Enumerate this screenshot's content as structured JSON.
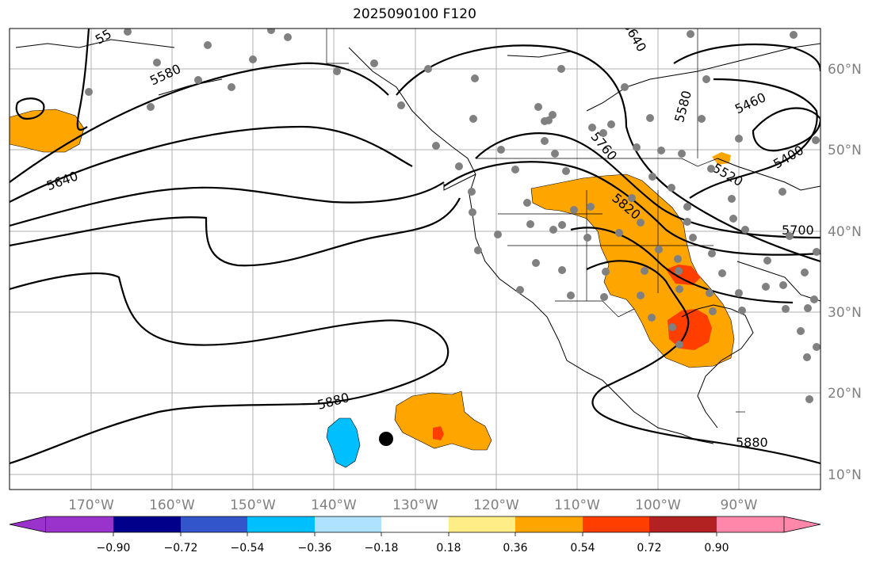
{
  "title": "2025090100 F120",
  "colors": {
    "grid": "#b0b0b0",
    "tick": "#808080",
    "station": "#808080",
    "bins": [
      "#9933cc",
      "#00008b",
      "#3355cc",
      "#00bfff",
      "#aee2ff",
      "#ffffff",
      "#ffee88",
      "#ffa500",
      "#ff3e00",
      "#b22222",
      "#ff88aa"
    ]
  },
  "longitude_labels": [
    "170°W",
    "160°W",
    "150°W",
    "140°W",
    "130°W",
    "120°W",
    "110°W",
    "100°W",
    "90°W"
  ],
  "latitude_labels": [
    "60°N",
    "50°N",
    "40°N",
    "30°N",
    "20°N",
    "10°N"
  ],
  "colorbar_ticks": [
    "−0.90",
    "−0.72",
    "−0.54",
    "−0.36",
    "−0.18",
    "0.18",
    "0.36",
    "0.54",
    "0.72",
    "0.90"
  ],
  "contour_labels": [
    {
      "text": "5580",
      "pos": "NE Pacific near Aleutians"
    },
    {
      "text": "5640",
      "pos": "NW Pacific"
    },
    {
      "text": "5880",
      "pos": "subtropical Pacific"
    },
    {
      "text": "5760",
      "pos": "Pacific Northwest"
    },
    {
      "text": "5820",
      "pos": "central US"
    },
    {
      "text": "5580",
      "pos": "central Canada"
    },
    {
      "text": "5460",
      "pos": "Hudson Bay"
    },
    {
      "text": "5400",
      "pos": "Hudson Bay"
    },
    {
      "text": "5520",
      "pos": "Great Lakes"
    },
    {
      "text": "5700",
      "pos": "Ohio Valley"
    },
    {
      "text": "5880",
      "pos": "Central America"
    },
    {
      "text": "5640",
      "pos": "northern Canada"
    },
    {
      "text": "55",
      "pos": "Bering Sea"
    }
  ]
}
